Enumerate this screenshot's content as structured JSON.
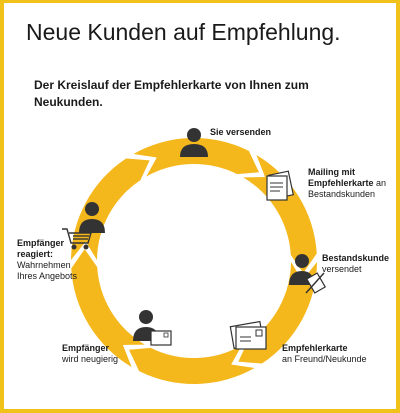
{
  "title": "Neue Kunden auf Empfehlung.",
  "subtitle": "Der Kreislauf der Empfehlerkarte von Ihnen zum Neukunden.",
  "colors": {
    "ring": "#f5b81c",
    "frame": "#f0c21a",
    "figure": "#333333",
    "text": "#1a1a1a"
  },
  "steps": {
    "send": {
      "line1": "Sie versenden"
    },
    "mailing": {
      "line1": "Mailing mit",
      "line2": "Empfehlerkarte",
      "line3": "an",
      "line4": "Bestandskunden"
    },
    "forward": {
      "line1": "Bestandskunde",
      "line2": "versendet"
    },
    "card": {
      "line1": "Empfehlerkarte",
      "line2": "an Freund/Neukunde"
    },
    "curious": {
      "line1": "Empfänger",
      "line2": "wird neugierig"
    },
    "react": {
      "line1": "Empfänger",
      "line2": "reagiert:",
      "line3": "Wahrnehmen",
      "line4": "Ihres Angebots"
    }
  },
  "icons": [
    "person-icon",
    "letter-icon",
    "pen-hand-icon",
    "postcard-icon",
    "shopping-cart-icon"
  ]
}
